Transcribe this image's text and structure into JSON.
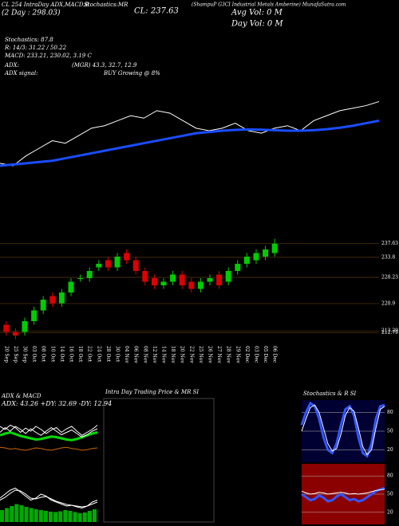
{
  "header": {
    "left": "CL 254 IntraDay ADX,MACD,B",
    "stoch": "Stochastics:MR",
    "close": "CL: 237.63",
    "name": "(ShampuP G3CI Industrial Metals Amberine) MunafaSutra.com",
    "twoday": "(2 Day : 298.03)",
    "avgvol": "Avg Vol: 0  M",
    "dayvol": "Day Vol: 0  M",
    "l1": "Stochastics: 87.8",
    "l2": "R: 14/3: 31.22 / 50.22",
    "l3": "MACD: 233.21, 230.02, 3.19 C",
    "l4": "ADX:",
    "l4b": "(MGR) 43.3, 32.7, 12.9",
    "l5": "ADX  signal:",
    "l5b": "BUY Growing @ 8%"
  },
  "chart_data": [
    {
      "type": "line",
      "ylim": [
        205,
        240
      ],
      "series": [
        {
          "color": "#ffffff",
          "width": 1,
          "values": [
            213,
            212,
            216,
            219,
            222,
            221,
            224,
            227,
            228,
            230,
            232,
            231,
            234,
            233,
            230,
            227,
            226,
            227,
            229,
            226,
            225,
            227,
            228,
            226,
            230,
            232,
            234,
            235,
            236,
            237.63
          ]
        },
        {
          "color": "#1a4dff",
          "width": 3,
          "values": [
            212,
            212.5,
            213,
            213.5,
            214,
            215,
            216,
            217,
            218,
            219,
            220,
            221,
            222,
            223,
            224,
            225,
            225.5,
            226,
            226.3,
            226.5,
            226.4,
            226.2,
            226,
            226,
            226.2,
            226.6,
            227.2,
            228,
            229,
            230
          ]
        }
      ]
    },
    {
      "type": "candlestick",
      "ylim": [
        210,
        240
      ],
      "yticks": [
        237.63,
        233.8,
        228.23,
        220.9,
        213.29,
        212.79
      ],
      "categories": [
        "20 Sep",
        "25 Sep",
        "30 Sep",
        "03 Oct",
        "08 Oct",
        "10 Oct",
        "14 Oct",
        "16 Oct",
        "18 Oct",
        "22 Oct",
        "24 Oct",
        "28 Oct",
        "30 Oct",
        "04 Nov",
        "06 Nov",
        "08 Nov",
        "12 Nov",
        "14 Nov",
        "18 Nov",
        "20 Nov",
        "22 Nov",
        "25 Nov",
        "26 Nov",
        "27 Nov",
        "28 Nov",
        "29 Nov",
        "02 Dec",
        "03 Dec",
        "05 Dec",
        "06 Dec"
      ],
      "open": [
        215,
        213,
        213,
        216,
        219,
        223,
        221,
        224,
        228,
        228,
        231,
        233,
        231,
        235,
        233,
        230,
        228,
        226,
        227,
        229,
        227,
        225,
        227,
        229,
        227,
        230,
        232,
        233,
        234,
        235
      ],
      "high": [
        216,
        214,
        217,
        220,
        223,
        224,
        225,
        228,
        229,
        231,
        233,
        234,
        235,
        236,
        234,
        231,
        229,
        228,
        230,
        230,
        228,
        228,
        229,
        230,
        231,
        233,
        235,
        236,
        237,
        239
      ],
      "low": [
        212,
        211,
        212,
        215,
        218,
        220,
        220,
        223,
        227,
        227,
        230,
        230,
        230,
        232,
        229,
        226,
        225,
        225,
        226,
        225,
        224,
        224,
        226,
        225,
        226,
        229,
        231,
        232,
        233,
        234
      ],
      "close": [
        213,
        212,
        216,
        219,
        222,
        221,
        224,
        227,
        228,
        230,
        232,
        231,
        234,
        233,
        230,
        227,
        226,
        227,
        229,
        226,
        225,
        227,
        228,
        226,
        230,
        232,
        234,
        235,
        236,
        237.63
      ],
      "up_color": "#00cc00",
      "down_color": "#dd0000"
    },
    {
      "type": "line",
      "title": "ADX  & MACD",
      "annotation": "ADX: 43.26  +DY: 32.69  -DY: 12.94",
      "ylim": [
        0,
        100
      ],
      "series": [
        {
          "color": "#00dd00",
          "width": 3,
          "values": [
            45,
            48,
            50,
            47,
            44,
            42,
            40,
            38,
            39,
            41,
            43,
            42,
            40,
            38,
            37,
            39,
            42,
            45,
            48,
            50
          ]
        },
        {
          "color": "#ffffff",
          "width": 1,
          "values": [
            60,
            55,
            62,
            58,
            50,
            57,
            52,
            60,
            55,
            48,
            54,
            58,
            50,
            56,
            60,
            52,
            45,
            50,
            55,
            62
          ]
        },
        {
          "color": "#ffffff",
          "width": 1,
          "values": [
            50,
            58,
            52,
            60,
            55,
            48,
            56,
            50,
            45,
            52,
            58,
            52,
            46,
            50,
            54,
            48,
            42,
            46,
            52,
            56
          ]
        },
        {
          "color": "#cc6600",
          "width": 1,
          "values": [
            25,
            24,
            22,
            23,
            21,
            20,
            22,
            24,
            23,
            21,
            20,
            22,
            24,
            25,
            23,
            22,
            20,
            21,
            23,
            24
          ]
        }
      ]
    },
    {
      "type": "macd",
      "ylim": [
        0,
        100
      ],
      "bars": [
        30,
        35,
        40,
        45,
        42,
        38,
        35,
        32,
        30,
        28,
        26,
        25,
        27,
        30,
        28,
        25,
        22,
        24,
        28,
        32
      ],
      "bar_color": "#00aa00",
      "series": [
        {
          "color": "#ffffff",
          "width": 1,
          "values": [
            60,
            70,
            80,
            85,
            75,
            65,
            55,
            60,
            70,
            65,
            55,
            50,
            45,
            40,
            42,
            38,
            35,
            40,
            50,
            55
          ]
        },
        {
          "color": "#ffffff",
          "width": 1,
          "values": [
            55,
            62,
            72,
            80,
            78,
            70,
            60,
            58,
            62,
            64,
            58,
            52,
            48,
            44,
            42,
            40,
            38,
            40,
            45,
            50
          ]
        }
      ]
    },
    {
      "type": "empty",
      "title": "Intra  Day Trading Price  & MR        SI"
    },
    {
      "type": "line",
      "title": "Stochastics  & R         SI",
      "ylim": [
        0,
        100
      ],
      "yticks": [
        20,
        50,
        80
      ],
      "background": "#000033",
      "series": [
        {
          "color": "#3355ff",
          "width": 3,
          "values": [
            60,
            80,
            95,
            90,
            70,
            40,
            20,
            15,
            30,
            60,
            85,
            90,
            75,
            40,
            15,
            10,
            30,
            70,
            90,
            92
          ]
        },
        {
          "color": "#ffffff",
          "width": 1,
          "values": [
            50,
            70,
            88,
            92,
            80,
            55,
            30,
            18,
            22,
            45,
            75,
            88,
            82,
            55,
            25,
            12,
            20,
            55,
            85,
            90
          ]
        }
      ]
    },
    {
      "type": "line",
      "ylim": [
        0,
        100
      ],
      "yticks": [
        20,
        50,
        80
      ],
      "background": "#8b0000",
      "series": [
        {
          "color": "#3355ff",
          "width": 3,
          "values": [
            50,
            45,
            40,
            42,
            48,
            44,
            38,
            40,
            46,
            50,
            45,
            40,
            42,
            38,
            40,
            45,
            50,
            55,
            58,
            60
          ]
        },
        {
          "color": "#ffffff",
          "width": 1,
          "values": [
            55,
            52,
            50,
            51,
            53,
            52,
            50,
            51,
            52,
            53,
            52,
            50,
            51,
            50,
            51,
            52,
            54,
            56,
            57,
            58
          ]
        }
      ]
    }
  ]
}
